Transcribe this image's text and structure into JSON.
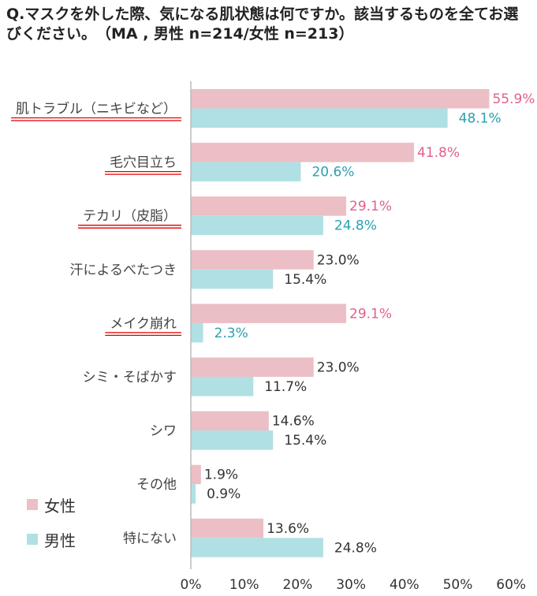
{
  "question": "Q.マスクを外した際、気になる肌状態は何ですか。該当するものを全てお選びください。　（MA , 男性 n=214/女性 n=213）",
  "colors": {
    "female_bar": "#ebbfc5",
    "male_bar": "#b0e0e3",
    "female_highlight_text": "#e0608e",
    "male_highlight_text": "#2aa0ad",
    "normal_text": "#333333",
    "underline": "#e00000",
    "axis": "#bbbbbb"
  },
  "legend": [
    {
      "label": "女性",
      "color": "#ebbfc5"
    },
    {
      "label": "男性",
      "color": "#b0e0e3"
    }
  ],
  "chart_data": {
    "type": "bar",
    "orientation": "horizontal",
    "categories": [
      "肌トラブル（ニキビなど）",
      "毛穴目立ち",
      "テカリ（皮脂）",
      "汗によるべたつき",
      "メイク崩れ",
      "シミ・そばかす",
      "シワ",
      "その他",
      "特にない"
    ],
    "series": [
      {
        "name": "女性",
        "values": [
          55.9,
          41.8,
          29.1,
          23.0,
          29.1,
          23.0,
          14.6,
          1.9,
          13.6
        ],
        "labels": [
          "55.9%",
          "41.8%",
          "29.1%",
          "23.0%",
          "29.1%",
          "23.0%",
          "14.6%",
          "1.9%",
          "13.6%"
        ]
      },
      {
        "name": "男性",
        "values": [
          48.1,
          20.6,
          24.8,
          15.4,
          2.3,
          11.7,
          15.4,
          0.9,
          24.8
        ],
        "labels": [
          "48.1%",
          "20.6%",
          "24.8%",
          "15.4%",
          "2.3%",
          "11.7%",
          "15.4%",
          "0.9%",
          "24.8%"
        ]
      }
    ],
    "highlighted_categories": [
      "肌トラブル（ニキビなど）",
      "毛穴目立ち",
      "テカリ（皮脂）",
      "メイク崩れ"
    ],
    "xlim": [
      0,
      60
    ],
    "xticks": [
      "0%",
      "10%",
      "20%",
      "30%",
      "40%",
      "50%",
      "60%"
    ],
    "grid": false,
    "legend_position": "bottom-left"
  }
}
